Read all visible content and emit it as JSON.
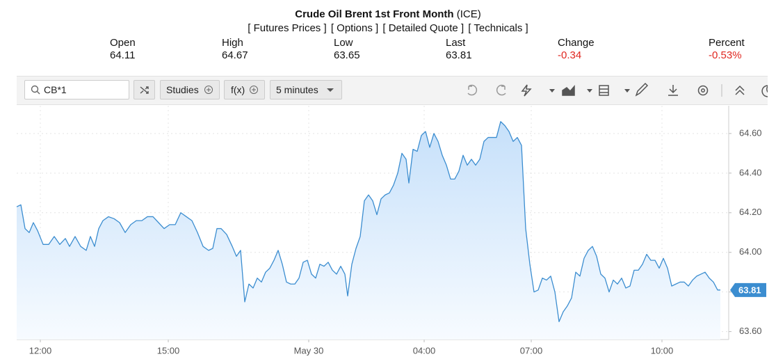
{
  "header": {
    "title": "Crude Oil Brent 1st Front Month",
    "exchange": "(ICE)",
    "links": [
      "[ Futures Prices ]",
      "[ Options ]",
      "[ Detailed Quote ]",
      "[ Technicals ]"
    ]
  },
  "quote": [
    {
      "label": "Open",
      "value": "64.11"
    },
    {
      "label": "High",
      "value": "64.67"
    },
    {
      "label": "Low",
      "value": "63.65"
    },
    {
      "label": "Last",
      "value": "63.81"
    },
    {
      "label": "Change",
      "value": "-0.34"
    },
    {
      "label": "Percent",
      "value": "-0.53%"
    }
  ],
  "toolbar": {
    "symbol": "CB*1",
    "studies": "Studies",
    "functions": "f(x)",
    "interval": "5 minutes"
  },
  "chart_data": {
    "type": "area",
    "color": "#3b8dd0",
    "grid": true,
    "xlim": [
      0,
      512
    ],
    "xticks": [
      {
        "value": 17,
        "label": "12:00"
      },
      {
        "value": 109,
        "label": "15:00"
      },
      {
        "value": 210,
        "label": "May 30"
      },
      {
        "value": 293,
        "label": "04:00"
      },
      {
        "value": 370,
        "label": "07:00"
      },
      {
        "value": 464,
        "label": "10:00"
      }
    ],
    "ylim": [
      63.56,
      64.74
    ],
    "yticks": [
      {
        "value": 63.6,
        "label": "63.60"
      },
      {
        "value": 63.8,
        "label": "63.80"
      },
      {
        "value": 64,
        "label": "64.00"
      },
      {
        "value": 64.2,
        "label": "64.20"
      },
      {
        "value": 64.4,
        "label": "64.40"
      },
      {
        "value": 64.6,
        "label": "64.60"
      }
    ],
    "x": [
      0,
      3,
      6,
      9,
      12,
      15,
      19,
      23,
      27,
      31,
      35,
      38,
      42,
      46,
      50,
      53,
      56,
      59,
      62,
      66,
      70,
      74,
      78,
      82,
      86,
      90,
      94,
      98,
      102,
      106,
      110,
      114,
      118,
      122,
      126,
      130,
      134,
      138,
      141,
      144,
      147,
      151,
      155,
      158,
      161,
      164,
      167,
      170,
      173,
      176,
      179,
      182,
      185,
      188,
      191,
      194,
      197,
      200,
      203,
      206,
      209,
      212,
      215,
      218,
      221,
      224,
      227,
      230,
      233,
      236,
      238,
      241,
      244,
      247,
      250,
      253,
      256,
      259,
      262,
      265,
      268,
      271,
      274,
      277,
      280,
      282,
      285,
      288,
      291,
      294,
      297,
      300,
      303,
      306,
      309,
      312,
      315,
      318,
      321,
      324,
      327,
      330,
      333,
      336,
      339,
      342,
      345,
      348,
      351,
      354,
      357,
      360,
      363,
      366,
      369,
      372,
      375,
      378,
      381,
      384,
      387,
      390,
      393,
      396,
      399,
      402,
      405,
      408,
      411,
      414,
      417,
      420,
      423,
      426,
      429,
      432,
      435,
      438,
      441,
      444,
      447,
      450,
      453,
      456,
      459,
      462,
      465,
      468,
      471,
      474,
      477,
      480,
      483,
      486,
      489,
      492,
      495,
      498,
      501,
      504,
      506
    ],
    "values": [
      64.23,
      64.24,
      64.12,
      64.1,
      64.15,
      64.11,
      64.04,
      64.04,
      64.08,
      64.04,
      64.07,
      64.03,
      64.08,
      64.03,
      64.01,
      64.08,
      64.03,
      64.12,
      64.16,
      64.18,
      64.17,
      64.15,
      64.1,
      64.14,
      64.16,
      64.16,
      64.18,
      64.18,
      64.15,
      64.12,
      64.14,
      64.14,
      64.2,
      64.18,
      64.16,
      64.1,
      64.03,
      64.01,
      64.02,
      64.12,
      64.12,
      64.09,
      64.03,
      63.98,
      64.01,
      63.75,
      63.84,
      63.82,
      63.87,
      63.85,
      63.9,
      63.92,
      63.96,
      64.01,
      63.94,
      63.85,
      63.84,
      63.84,
      63.87,
      63.95,
      63.96,
      63.89,
      63.87,
      63.94,
      63.93,
      63.95,
      63.91,
      63.89,
      63.93,
      63.89,
      63.78,
      63.94,
      64.02,
      64.08,
      64.26,
      64.29,
      64.26,
      64.19,
      64.27,
      64.29,
      64.3,
      64.34,
      64.4,
      64.5,
      64.47,
      64.35,
      64.52,
      64.51,
      64.59,
      64.61,
      64.53,
      64.6,
      64.56,
      64.49,
      64.44,
      64.37,
      64.37,
      64.41,
      64.49,
      64.44,
      64.47,
      64.44,
      64.47,
      64.56,
      64.58,
      64.58,
      64.58,
      64.66,
      64.64,
      64.61,
      64.56,
      64.58,
      64.54,
      64.12,
      63.94,
      63.8,
      63.81,
      63.87,
      63.86,
      63.88,
      63.8,
      63.65,
      63.7,
      63.73,
      63.77,
      63.9,
      63.88,
      63.97,
      64.01,
      64.03,
      63.98,
      63.89,
      63.87,
      63.8,
      63.86,
      63.84,
      63.87,
      63.82,
      63.83,
      63.91,
      63.91,
      63.94,
      63.99,
      63.96,
      63.96,
      63.92,
      63.97,
      63.92,
      63.83,
      63.84,
      63.85,
      63.85,
      63.83,
      63.86,
      63.88,
      63.89,
      63.9,
      63.87,
      63.85,
      63.81,
      63.81
    ]
  }
}
